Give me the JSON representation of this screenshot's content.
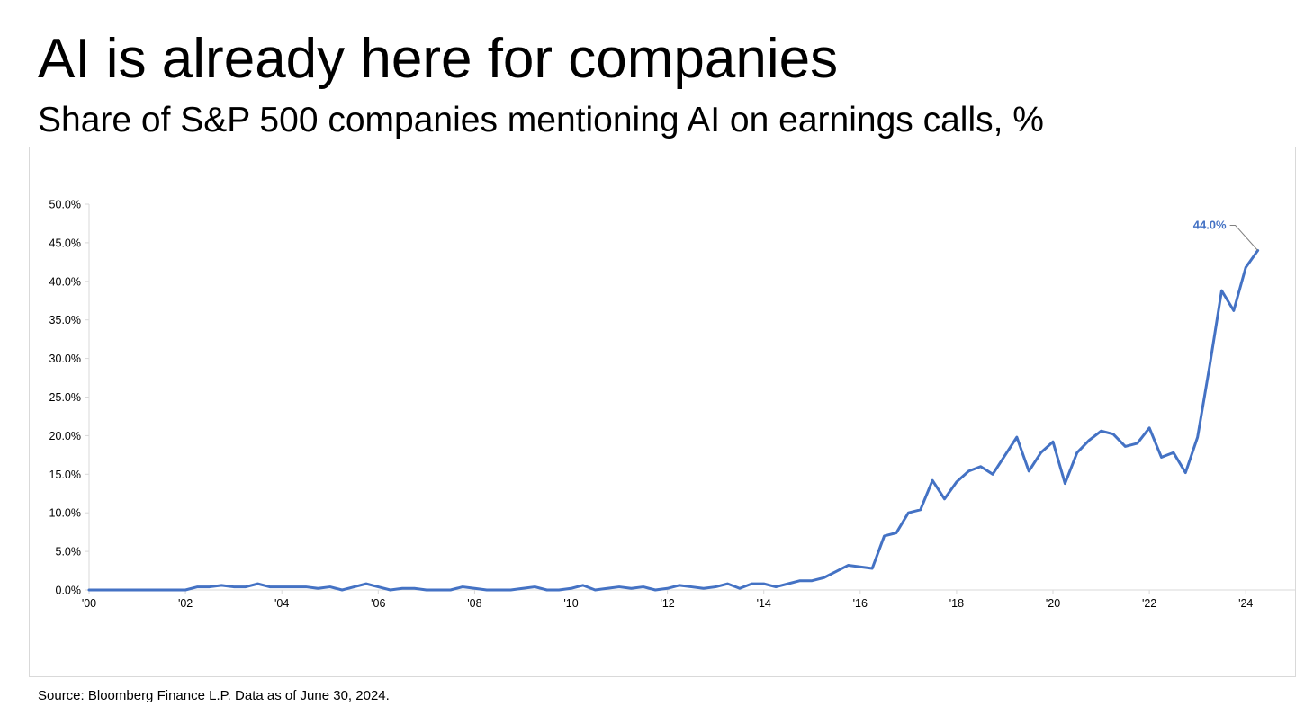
{
  "title": "AI is already here for companies",
  "subtitle": "Share of S&P 500 companies mentioning AI on earnings calls, %",
  "source": "Source: Bloomberg Finance L.P. Data as of June 30, 2024.",
  "chart_data": {
    "type": "line",
    "title": "",
    "xlabel": "",
    "ylabel": "",
    "xlim": [
      2000,
      2024.5
    ],
    "ylim": [
      0,
      50
    ],
    "grid": false,
    "line_color": "#4472C4",
    "x_ticks": [
      2000,
      2002,
      2004,
      2006,
      2008,
      2010,
      2012,
      2014,
      2016,
      2018,
      2020,
      2022,
      2024
    ],
    "x_tick_labels": [
      "'00",
      "'02",
      "'04",
      "'06",
      "'08",
      "'10",
      "'12",
      "'14",
      "'16",
      "'18",
      "'20",
      "'22",
      "'24"
    ],
    "y_ticks": [
      0,
      5,
      10,
      15,
      20,
      25,
      30,
      35,
      40,
      45,
      50
    ],
    "y_tick_labels": [
      "0.0%",
      "5.0%",
      "10.0%",
      "15.0%",
      "20.0%",
      "25.0%",
      "30.0%",
      "35.0%",
      "40.0%",
      "45.0%",
      "50.0%"
    ],
    "series": [
      {
        "x": [
          2000,
          2000.25,
          2000.5,
          2000.75,
          2001,
          2001.25,
          2001.5,
          2001.75,
          2002,
          2002.25,
          2002.5,
          2002.75,
          2003,
          2003.25,
          2003.5,
          2003.75,
          2004,
          2004.25,
          2004.5,
          2004.75,
          2005,
          2005.25,
          2005.5,
          2005.75,
          2006,
          2006.25,
          2006.5,
          2006.75,
          2007,
          2007.25,
          2007.5,
          2007.75,
          2008,
          2008.25,
          2008.5,
          2008.75,
          2009,
          2009.25,
          2009.5,
          2009.75,
          2010,
          2010.25,
          2010.5,
          2010.75,
          2011,
          2011.25,
          2011.5,
          2011.75,
          2012,
          2012.25,
          2012.5,
          2012.75,
          2013,
          2013.25,
          2013.5,
          2013.75,
          2014,
          2014.25,
          2014.5,
          2014.75,
          2015,
          2015.25,
          2015.5,
          2015.75,
          2016,
          2016.25,
          2016.5,
          2016.75,
          2017,
          2017.25,
          2017.5,
          2017.75,
          2018,
          2018.25,
          2018.5,
          2018.75,
          2019,
          2019.25,
          2019.5,
          2019.75,
          2020,
          2020.25,
          2020.5,
          2020.75,
          2021,
          2021.25,
          2021.5,
          2021.75,
          2022,
          2022.25,
          2022.5,
          2022.75,
          2023,
          2023.25,
          2023.5,
          2023.75,
          2024,
          2024.25
        ],
        "values": [
          0.0,
          0.0,
          0.0,
          0.0,
          0.0,
          0.0,
          0.0,
          0.0,
          0.0,
          0.4,
          0.4,
          0.6,
          0.4,
          0.4,
          0.8,
          0.4,
          0.4,
          0.4,
          0.4,
          0.2,
          0.4,
          0.0,
          0.4,
          0.8,
          0.4,
          0.0,
          0.2,
          0.2,
          0.0,
          0.0,
          0.0,
          0.4,
          0.2,
          0.0,
          0.0,
          0.0,
          0.2,
          0.4,
          0.0,
          0.0,
          0.2,
          0.6,
          0.0,
          0.2,
          0.4,
          0.2,
          0.4,
          0.0,
          0.2,
          0.6,
          0.4,
          0.2,
          0.4,
          0.8,
          0.2,
          0.8,
          0.8,
          0.4,
          0.8,
          1.2,
          1.2,
          1.6,
          2.4,
          3.2,
          3.0,
          2.8,
          7.0,
          7.4,
          10.0,
          10.4,
          14.2,
          11.8,
          14.0,
          15.4,
          16.0,
          15.0,
          17.4,
          19.8,
          15.4,
          17.8,
          19.2,
          13.8,
          17.8,
          19.4,
          20.6,
          20.2,
          18.6,
          19.0,
          21.0,
          17.2,
          17.8,
          15.2,
          19.8,
          29.0,
          38.8,
          36.2,
          41.8,
          44.0
        ]
      }
    ],
    "annotations": [
      {
        "text": "44.0%",
        "x": 2024.25,
        "y": 44.0
      }
    ]
  }
}
